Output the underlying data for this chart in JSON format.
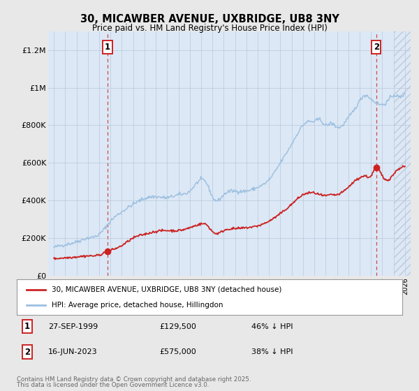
{
  "title_line1": "30, MICAWBER AVENUE, UXBRIDGE, UB8 3NY",
  "title_line2": "Price paid vs. HM Land Registry's House Price Index (HPI)",
  "ylim": [
    0,
    1300000
  ],
  "yticks": [
    0,
    200000,
    400000,
    600000,
    800000,
    1000000,
    1200000
  ],
  "ytick_labels": [
    "£0",
    "£200K",
    "£400K",
    "£600K",
    "£800K",
    "£1M",
    "£1.2M"
  ],
  "background_color": "#e8e8e8",
  "plot_bg_color": "#dce8f5",
  "hpi_color": "#9bbfe0",
  "price_color": "#cc2222",
  "marker1_x": 1999.74,
  "marker1_y": 129500,
  "marker2_x": 2023.46,
  "marker2_y": 575000,
  "legend_line1": "30, MICAWBER AVENUE, UXBRIDGE, UB8 3NY (detached house)",
  "legend_line2": "HPI: Average price, detached house, Hillingdon",
  "marker1_date": "27-SEP-1999",
  "marker1_price": "£129,500",
  "marker1_hpi": "46% ↓ HPI",
  "marker2_date": "16-JUN-2023",
  "marker2_price": "£575,000",
  "marker2_hpi": "38% ↓ HPI",
  "footer_line1": "Contains HM Land Registry data © Crown copyright and database right 2025.",
  "footer_line2": "This data is licensed under the Open Government Licence v3.0.",
  "xmin": 1994.5,
  "xmax": 2026.5,
  "hpi_curve_points": [
    [
      1995.0,
      150000
    ],
    [
      1996.0,
      165000
    ],
    [
      1997.0,
      180000
    ],
    [
      1998.0,
      200000
    ],
    [
      1999.0,
      220000
    ],
    [
      2000.0,
      290000
    ],
    [
      2001.0,
      340000
    ],
    [
      2002.0,
      380000
    ],
    [
      2003.0,
      410000
    ],
    [
      2004.0,
      420000
    ],
    [
      2005.0,
      415000
    ],
    [
      2006.0,
      430000
    ],
    [
      2007.0,
      450000
    ],
    [
      2008.0,
      510000
    ],
    [
      2008.5,
      490000
    ],
    [
      2009.0,
      420000
    ],
    [
      2009.5,
      400000
    ],
    [
      2010.0,
      430000
    ],
    [
      2011.0,
      450000
    ],
    [
      2012.0,
      450000
    ],
    [
      2013.0,
      470000
    ],
    [
      2014.0,
      510000
    ],
    [
      2015.0,
      600000
    ],
    [
      2016.0,
      700000
    ],
    [
      2017.0,
      800000
    ],
    [
      2017.5,
      820000
    ],
    [
      2018.0,
      820000
    ],
    [
      2018.5,
      830000
    ],
    [
      2019.0,
      800000
    ],
    [
      2019.5,
      810000
    ],
    [
      2020.0,
      790000
    ],
    [
      2020.5,
      800000
    ],
    [
      2021.0,
      840000
    ],
    [
      2021.5,
      880000
    ],
    [
      2022.0,
      930000
    ],
    [
      2022.5,
      960000
    ],
    [
      2023.0,
      940000
    ],
    [
      2023.46,
      920000
    ],
    [
      2024.0,
      910000
    ],
    [
      2024.5,
      930000
    ],
    [
      2025.0,
      960000
    ],
    [
      2025.5,
      950000
    ],
    [
      2026.0,
      980000
    ]
  ],
  "price_curve_points": [
    [
      1995.0,
      90000
    ],
    [
      1996.0,
      95000
    ],
    [
      1997.0,
      100000
    ],
    [
      1998.0,
      105000
    ],
    [
      1999.0,
      110000
    ],
    [
      1999.74,
      129500
    ],
    [
      2000.0,
      135000
    ],
    [
      2001.0,
      160000
    ],
    [
      2002.0,
      200000
    ],
    [
      2003.0,
      220000
    ],
    [
      2004.0,
      235000
    ],
    [
      2005.0,
      240000
    ],
    [
      2006.0,
      240000
    ],
    [
      2007.0,
      255000
    ],
    [
      2008.0,
      275000
    ],
    [
      2008.5,
      270000
    ],
    [
      2009.0,
      235000
    ],
    [
      2009.5,
      225000
    ],
    [
      2010.0,
      240000
    ],
    [
      2011.0,
      250000
    ],
    [
      2012.0,
      255000
    ],
    [
      2013.0,
      265000
    ],
    [
      2014.0,
      290000
    ],
    [
      2015.0,
      330000
    ],
    [
      2016.0,
      380000
    ],
    [
      2017.0,
      430000
    ],
    [
      2017.5,
      440000
    ],
    [
      2018.0,
      440000
    ],
    [
      2018.5,
      430000
    ],
    [
      2019.0,
      425000
    ],
    [
      2019.5,
      430000
    ],
    [
      2020.0,
      430000
    ],
    [
      2020.5,
      445000
    ],
    [
      2021.0,
      470000
    ],
    [
      2021.5,
      500000
    ],
    [
      2022.0,
      520000
    ],
    [
      2022.5,
      530000
    ],
    [
      2023.0,
      530000
    ],
    [
      2023.46,
      575000
    ],
    [
      2024.0,
      530000
    ],
    [
      2024.5,
      510000
    ],
    [
      2025.0,
      540000
    ],
    [
      2025.5,
      570000
    ],
    [
      2026.0,
      580000
    ]
  ]
}
